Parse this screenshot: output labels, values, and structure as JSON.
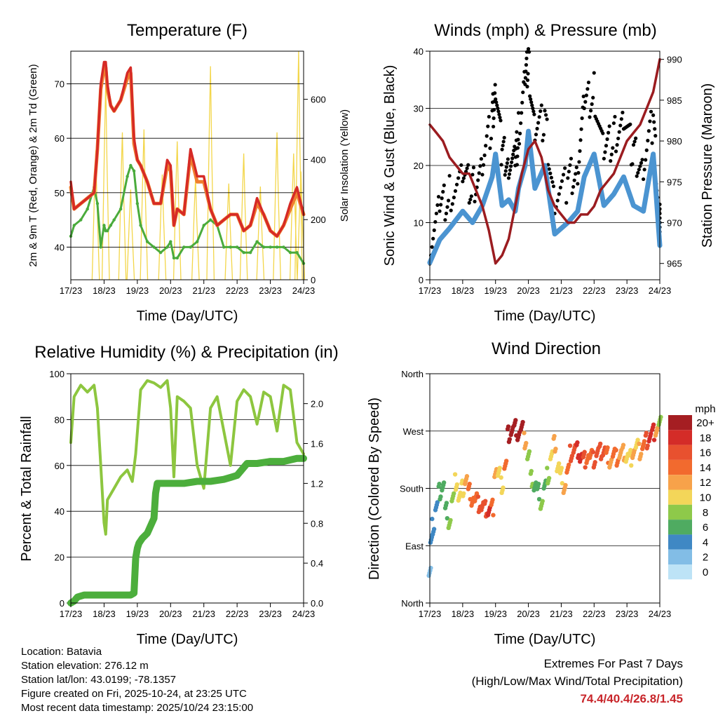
{
  "x_ticks": [
    "17/23",
    "18/23",
    "19/23",
    "20/23",
    "21/23",
    "22/23",
    "23/23",
    "24/23"
  ],
  "xlabel": "Time (Day/UTC)",
  "chart_data": [
    {
      "id": "temperature",
      "type": "line",
      "title": "Temperature (F)",
      "ylabel": "2m & 9m T (Red, Orange) & 2m Td (Green)",
      "ylabel_right": "Solar Insolation (Yellow)",
      "ylim": [
        34,
        76
      ],
      "yticks": [
        40,
        50,
        60,
        70
      ],
      "ylim_right": [
        0,
        760
      ],
      "yticks_right": [
        0,
        200,
        400,
        600
      ],
      "x": [
        0,
        0.1,
        0.3,
        0.5,
        0.7,
        0.8,
        0.9,
        1.0,
        1.05,
        1.1,
        1.2,
        1.3,
        1.5,
        1.7,
        1.8,
        1.9,
        2.0,
        2.1,
        2.3,
        2.5,
        2.7,
        2.9,
        3.0,
        3.1,
        3.2,
        3.4,
        3.6,
        3.8,
        4.0,
        4.2,
        4.4,
        4.6,
        4.8,
        5.0,
        5.2,
        5.4,
        5.6,
        5.8,
        6.0,
        6.2,
        6.4,
        6.6,
        6.8,
        7.0
      ],
      "series": [
        {
          "name": "2m T",
          "color": "#d62a26",
          "values": [
            52,
            47,
            48,
            49,
            50,
            58,
            70,
            74,
            74,
            70,
            66,
            65,
            67,
            72,
            73,
            60,
            56,
            55,
            52,
            48,
            48,
            56,
            55,
            44,
            47,
            46,
            58,
            53,
            53,
            47,
            44,
            45,
            46,
            46,
            43,
            44,
            49,
            46,
            43,
            42,
            44,
            48,
            51,
            46
          ]
        },
        {
          "name": "9m T",
          "color": "#f07e2f",
          "values": [
            51,
            47,
            48,
            49,
            50,
            58,
            69,
            73,
            73,
            69,
            66,
            65,
            67,
            71,
            72,
            59,
            56,
            55,
            52,
            48,
            48,
            55,
            54,
            44,
            47,
            46,
            57,
            52,
            52,
            47,
            44,
            45,
            46,
            46,
            43,
            44,
            48,
            46,
            43,
            42,
            44,
            47,
            50,
            46
          ]
        },
        {
          "name": "2m Td",
          "color": "#4aab3c",
          "values": [
            42,
            44,
            45,
            47,
            51,
            48,
            40,
            44,
            43,
            43,
            44,
            45,
            47,
            53,
            55,
            54,
            48,
            44,
            41,
            40,
            39,
            40,
            41,
            38,
            38,
            40,
            40,
            41,
            44,
            45,
            44,
            40,
            40,
            40,
            39,
            39,
            41,
            40,
            40,
            40,
            40,
            39,
            39,
            37
          ]
        }
      ],
      "insolation": {
        "name": "Solar Insolation",
        "color": "#f3d64a",
        "peaks": [
          {
            "day": 0.75,
            "value": 430
          },
          {
            "day": 1.05,
            "value": 660
          },
          {
            "day": 1.55,
            "value": 490
          },
          {
            "day": 1.8,
            "value": 300
          },
          {
            "day": 2.2,
            "value": 500
          },
          {
            "day": 2.75,
            "value": 350
          },
          {
            "day": 3.2,
            "value": 460
          },
          {
            "day": 3.75,
            "value": 340
          },
          {
            "day": 4.2,
            "value": 710
          },
          {
            "day": 4.75,
            "value": 320
          },
          {
            "day": 5.2,
            "value": 420
          },
          {
            "day": 5.7,
            "value": 310
          },
          {
            "day": 6.2,
            "value": 490
          },
          {
            "day": 6.7,
            "value": 420
          },
          {
            "day": 6.85,
            "value": 760
          },
          {
            "day": 6.92,
            "value": 360
          }
        ]
      }
    },
    {
      "id": "winds",
      "type": "scatter",
      "title": "Winds (mph) & Pressure (mb)",
      "ylabel": "Sonic Wind & Gust (Blue, Black)",
      "ylabel_right": "Station Pressure (Maroon)",
      "ylim": [
        0,
        40
      ],
      "yticks": [
        0,
        10,
        20,
        30,
        40
      ],
      "ylim_right": [
        963,
        991
      ],
      "yticks_right": [
        965,
        970,
        975,
        980,
        985,
        990
      ],
      "wind": {
        "name": "Sonic Wind",
        "color": "#4b94d1",
        "x": [
          0,
          0.3,
          0.6,
          1.0,
          1.3,
          1.6,
          1.9,
          2.0,
          2.2,
          2.4,
          2.6,
          2.7,
          2.9,
          3.0,
          3.2,
          3.5,
          3.8,
          4.2,
          4.5,
          4.7,
          5.0,
          5.3,
          5.6,
          5.9,
          6.2,
          6.5,
          6.8,
          7.0
        ],
        "values": [
          3,
          7,
          9,
          12,
          10,
          13,
          18,
          22,
          13,
          14,
          12,
          16,
          20,
          26,
          16,
          20,
          8,
          10,
          12,
          18,
          22,
          13,
          15,
          18,
          13,
          12,
          22,
          6
        ]
      },
      "gust": {
        "name": "Gust",
        "color": "#000000",
        "x": [
          0,
          0.3,
          0.6,
          1.0,
          1.3,
          1.6,
          1.9,
          2.0,
          2.2,
          2.4,
          2.6,
          2.7,
          2.9,
          3.0,
          3.2,
          3.5,
          3.8,
          4.2,
          4.5,
          4.7,
          5.0,
          5.3,
          5.6,
          5.9,
          6.2,
          6.5,
          6.8,
          7.0
        ],
        "values": [
          6,
          12,
          15,
          18,
          16,
          20,
          28,
          34,
          22,
          21,
          20,
          26,
          35,
          38,
          26,
          28,
          14,
          17,
          20,
          30,
          33,
          22,
          25,
          28,
          22,
          20,
          28,
          10
        ]
      },
      "pressure": {
        "name": "Station Pressure",
        "color": "#9b1c20",
        "x": [
          0,
          0.2,
          0.4,
          0.6,
          0.8,
          1.0,
          1.2,
          1.4,
          1.6,
          1.8,
          2.0,
          2.2,
          2.4,
          2.6,
          2.8,
          3.0,
          3.2,
          3.4,
          3.6,
          3.8,
          4.0,
          4.2,
          4.4,
          4.6,
          4.8,
          5.0,
          5.2,
          5.4,
          5.6,
          5.8,
          6.0,
          6.2,
          6.4,
          6.6,
          6.8,
          7.0
        ],
        "values": [
          982,
          981,
          980,
          978,
          977,
          976,
          976,
          974,
          972,
          969,
          965,
          966,
          968,
          972,
          976,
          979,
          980,
          978,
          974,
          972,
          971,
          970,
          970,
          971,
          971,
          972,
          974,
          975,
          976,
          978,
          980,
          981,
          982,
          984,
          986,
          990
        ]
      }
    },
    {
      "id": "humidity",
      "type": "line",
      "title": "Relative Humidity (%) & Precipitation (in)",
      "ylabel": "Percent & Total Rainfall",
      "ylim": [
        0,
        100
      ],
      "yticks": [
        0,
        20,
        40,
        60,
        80,
        100
      ],
      "ylim_right": [
        0,
        2.3
      ],
      "yticks_right": [
        0.0,
        0.4,
        0.8,
        1.2,
        1.6,
        2.0
      ],
      "rh": {
        "name": "Relative Humidity",
        "color": "#8dc63f",
        "x": [
          0,
          0.1,
          0.3,
          0.5,
          0.7,
          0.8,
          0.9,
          1.0,
          1.05,
          1.1,
          1.3,
          1.5,
          1.7,
          1.85,
          1.95,
          2.1,
          2.3,
          2.5,
          2.7,
          2.9,
          3.0,
          3.1,
          3.2,
          3.4,
          3.6,
          3.8,
          4.0,
          4.2,
          4.4,
          4.6,
          4.8,
          5.0,
          5.2,
          5.4,
          5.6,
          5.8,
          6.0,
          6.2,
          6.4,
          6.6,
          6.8,
          7.0
        ],
        "values": [
          70,
          90,
          95,
          92,
          95,
          85,
          60,
          35,
          30,
          45,
          50,
          55,
          58,
          53,
          65,
          93,
          97,
          96,
          94,
          97,
          85,
          55,
          90,
          88,
          85,
          60,
          50,
          85,
          90,
          75,
          60,
          88,
          93,
          90,
          78,
          92,
          90,
          75,
          95,
          93,
          70,
          65
        ]
      },
      "precip": {
        "name": "Total Precipitation",
        "color": "#4cae3c",
        "x": [
          0,
          0.1,
          0.2,
          0.4,
          0.6,
          1.0,
          1.4,
          1.8,
          1.9,
          1.95,
          2.0,
          2.05,
          2.15,
          2.3,
          2.5,
          2.55,
          2.6,
          2.8,
          3.0,
          3.4,
          3.8,
          4.2,
          4.6,
          4.8,
          5.0,
          5.3,
          5.6,
          6.0,
          6.4,
          6.8,
          7.0
        ],
        "values": [
          0,
          0.02,
          0.06,
          0.08,
          0.08,
          0.08,
          0.08,
          0.08,
          0.1,
          0.45,
          0.55,
          0.6,
          0.65,
          0.7,
          0.85,
          1.1,
          1.2,
          1.2,
          1.2,
          1.2,
          1.22,
          1.22,
          1.24,
          1.26,
          1.28,
          1.4,
          1.4,
          1.42,
          1.42,
          1.45,
          1.45
        ]
      }
    },
    {
      "id": "wind_direction",
      "type": "scatter",
      "title": "Wind Direction",
      "ylabel": "Direction (Colored By Speed)",
      "yticks": [
        "North",
        "East",
        "South",
        "West",
        "North"
      ],
      "ylim": [
        0,
        360
      ],
      "x": [
        0,
        0.05,
        0.1,
        0.2,
        0.3,
        0.4,
        0.5,
        0.6,
        0.7,
        0.8,
        0.9,
        1.0,
        1.1,
        1.2,
        1.3,
        1.4,
        1.5,
        1.6,
        1.7,
        1.8,
        1.9,
        2.0,
        2.1,
        2.2,
        2.3,
        2.4,
        2.5,
        2.6,
        2.7,
        2.8,
        2.9,
        3.0,
        3.1,
        3.2,
        3.3,
        3.4,
        3.5,
        3.6,
        3.7,
        3.8,
        3.9,
        4.0,
        4.1,
        4.2,
        4.3,
        4.4,
        4.5,
        4.6,
        4.7,
        4.8,
        4.9,
        5.0,
        5.1,
        5.2,
        5.3,
        5.4,
        5.5,
        5.6,
        5.7,
        5.8,
        5.9,
        6.0,
        6.1,
        6.2,
        6.3,
        6.4,
        6.5,
        6.6,
        6.7,
        6.8,
        6.9,
        7.0
      ],
      "direction": [
        55,
        95,
        120,
        150,
        175,
        185,
        145,
        130,
        160,
        190,
        165,
        180,
        195,
        175,
        165,
        160,
        155,
        150,
        148,
        146,
        150,
        210,
        200,
        185,
        215,
        265,
        272,
        275,
        268,
        272,
        255,
        230,
        195,
        185,
        175,
        160,
        180,
        200,
        230,
        250,
        215,
        200,
        185,
        205,
        235,
        240,
        240,
        230,
        225,
        232,
        228,
        225,
        235,
        238,
        240,
        232,
        225,
        230,
        228,
        232,
        236,
        230,
        228,
        240,
        244,
        238,
        246,
        255,
        262,
        268,
        275,
        280
      ],
      "speed": [
        2,
        3,
        4,
        4,
        5,
        6,
        6,
        7,
        8,
        10,
        9,
        10,
        12,
        13,
        14,
        14,
        15,
        16,
        16,
        17,
        14,
        12,
        10,
        10,
        14,
        20,
        20,
        20,
        19,
        19,
        12,
        8,
        7,
        6,
        6,
        7,
        6,
        8,
        10,
        12,
        10,
        10,
        12,
        14,
        16,
        16,
        18,
        17,
        16,
        14,
        14,
        15,
        16,
        16,
        15,
        14,
        12,
        13,
        14,
        12,
        12,
        10,
        10,
        12,
        10,
        12,
        14,
        16,
        17,
        18,
        12,
        8
      ],
      "colorbar": {
        "unit": "mph",
        "labels": [
          "20+",
          "18",
          "16",
          "14",
          "12",
          "10",
          "8",
          "6",
          "4",
          "2",
          "0"
        ],
        "colors": [
          "#a51e22",
          "#d42c28",
          "#e8512f",
          "#f26a2e",
          "#f7a24a",
          "#f3d659",
          "#8ec94a",
          "#4fab61",
          "#3f88c4",
          "#82bde6",
          "#bde3f6"
        ]
      }
    }
  ],
  "footer": {
    "location": "Location: Batavia",
    "elevation": "Station elevation: 276.12 m",
    "latlon": "Station lat/lon: 43.0199; -78.1357",
    "created": "Figure created on Fri, 2025-10-24, at 23:25 UTC",
    "recent": "Most recent data timestamp: 2025/10/24 23:15:00",
    "extremes_title": "Extremes For Past 7 Days",
    "extremes_subtitle": "(High/Low/Max Wind/Total Precipitation)",
    "extremes_values": "74.4/40.4/26.8/1.45"
  }
}
